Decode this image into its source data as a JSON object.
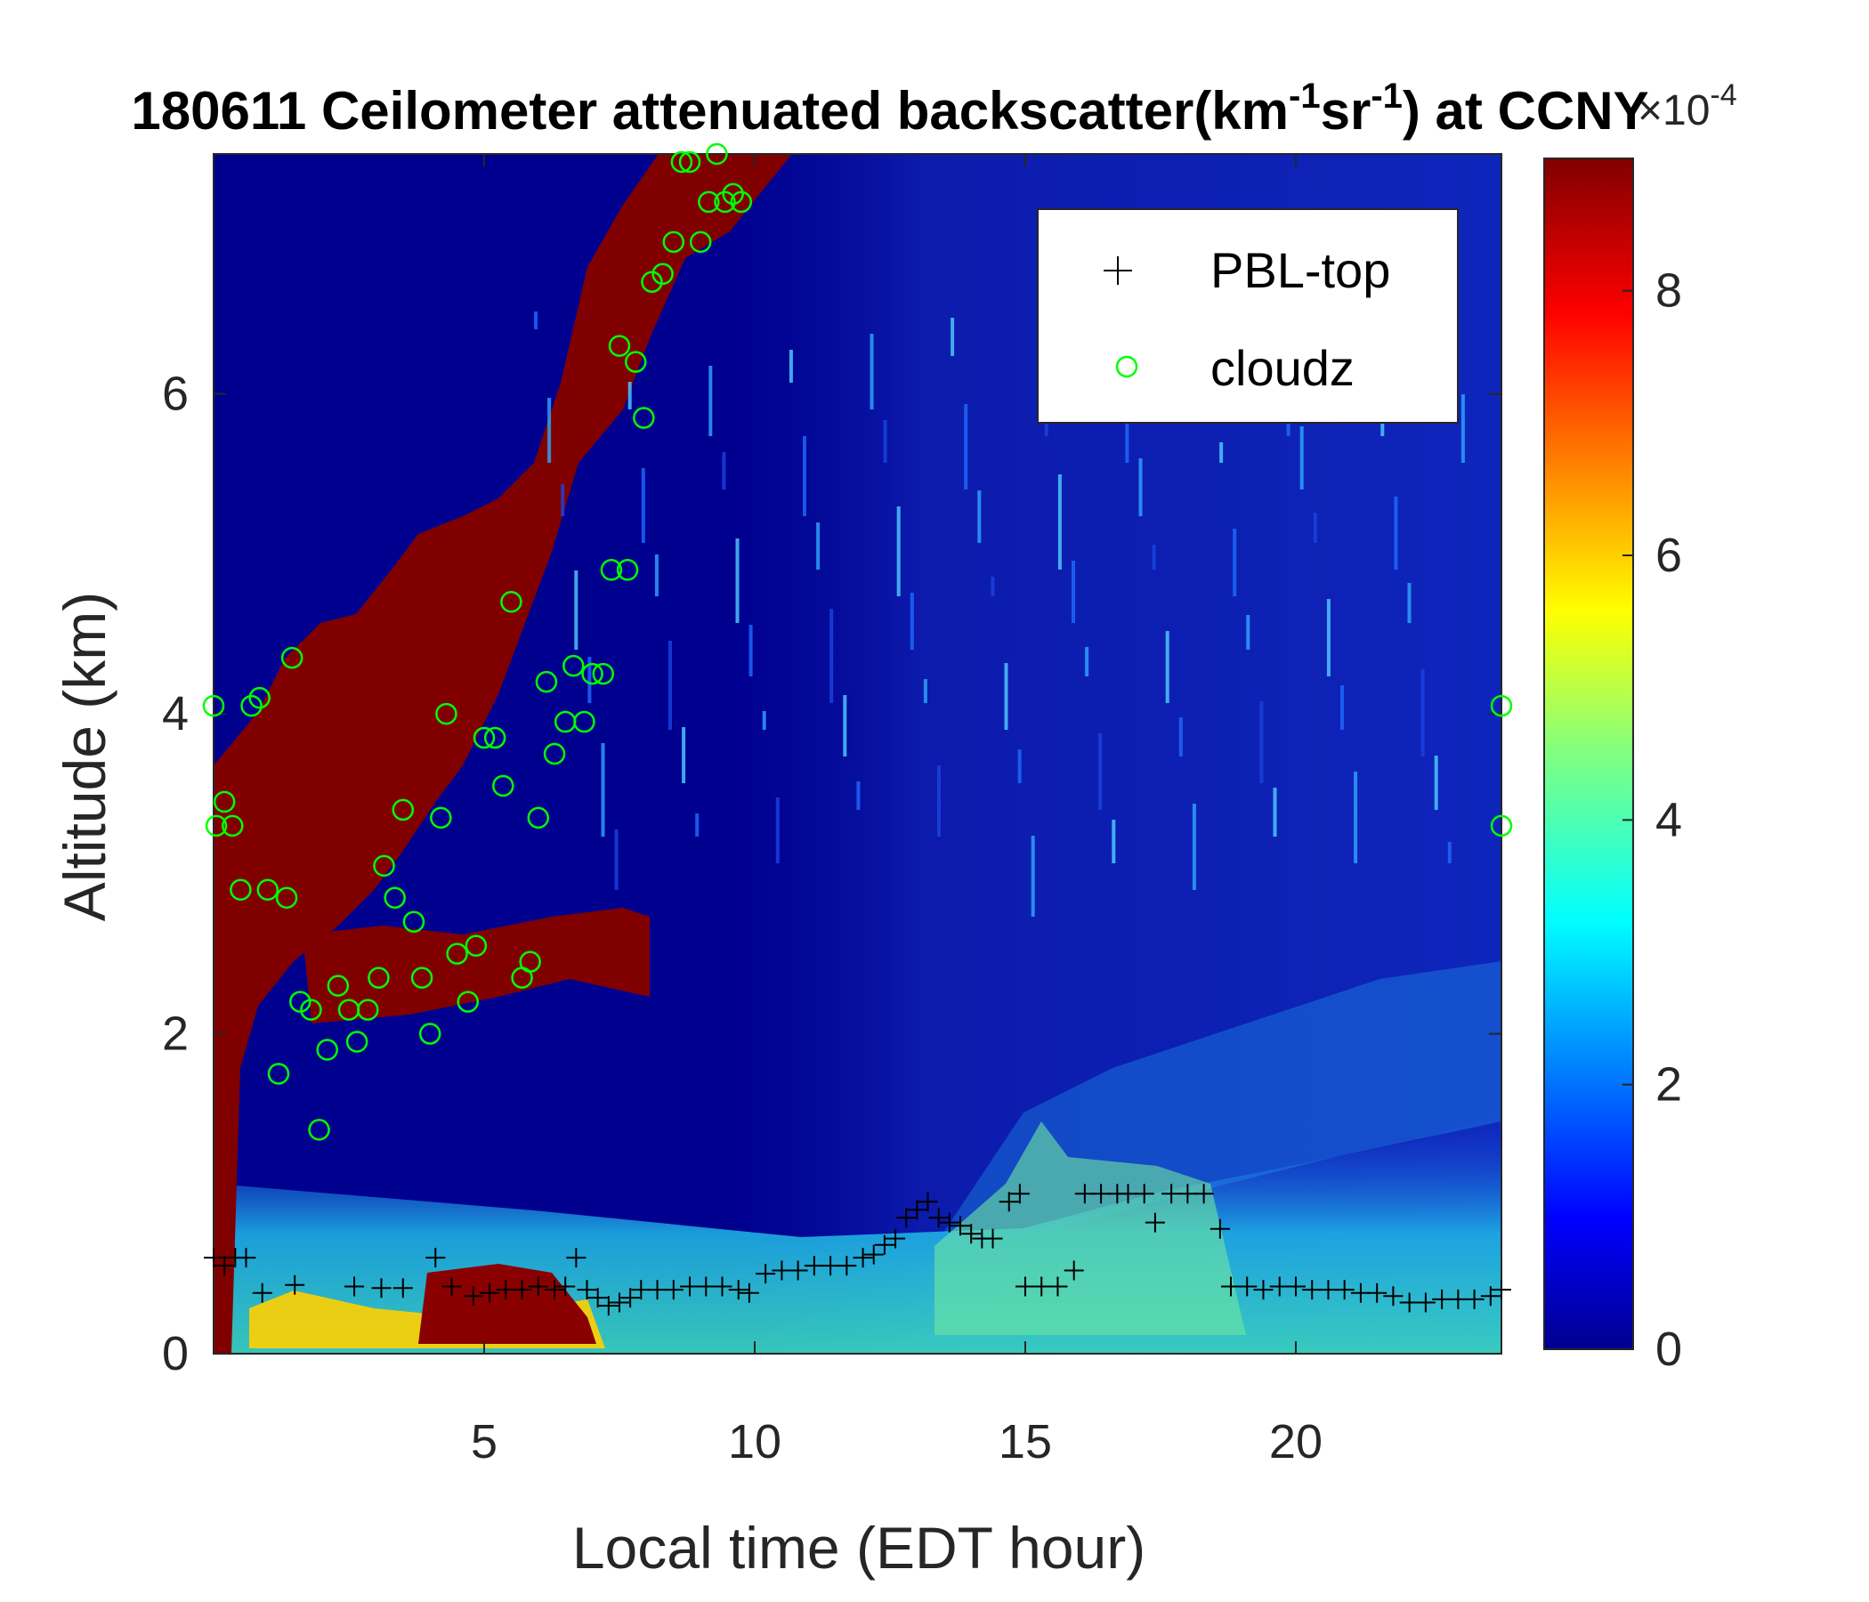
{
  "chart_data": {
    "type": "heatmap",
    "title_prefix": "180611 Ceilometer attenuated backscatter(km",
    "title_sup1": "-1",
    "title_mid": "sr",
    "title_sup2": "-1",
    "title_suffix": ") at CCNY",
    "xlabel": "Local time (EDT hour)",
    "ylabel": "Altitude (km)",
    "xlim": [
      0,
      23.8
    ],
    "ylim": [
      0,
      7.5
    ],
    "xticks": [
      5,
      10,
      15,
      20
    ],
    "xtick_labels": [
      "5",
      "10",
      "15",
      "20"
    ],
    "yticks": [
      0,
      2,
      4,
      6
    ],
    "ytick_labels": [
      "0",
      "2",
      "4",
      "6"
    ],
    "colorbar": {
      "colormap": "jet",
      "range": [
        0,
        9
      ],
      "ticks": [
        0,
        2,
        4,
        6,
        8
      ],
      "tick_labels": [
        "0",
        "2",
        "4",
        "6",
        "8"
      ],
      "multiplier_base": "×10",
      "multiplier_exp": "-4"
    },
    "legend": {
      "placement": "top-right",
      "entries": [
        {
          "name": "PBL-top",
          "marker": "+",
          "color": "#000000"
        },
        {
          "name": "cloudz",
          "marker": "o",
          "color": "#00ff00"
        }
      ]
    },
    "series": [
      {
        "name": "PBL-top",
        "points": [
          [
            0.0,
            0.6
          ],
          [
            0.2,
            0.55
          ],
          [
            0.4,
            0.6
          ],
          [
            0.6,
            0.6
          ],
          [
            0.9,
            0.38
          ],
          [
            1.5,
            0.43
          ],
          [
            2.6,
            0.42
          ],
          [
            3.1,
            0.41
          ],
          [
            3.5,
            0.41
          ],
          [
            4.1,
            0.6
          ],
          [
            4.4,
            0.42
          ],
          [
            4.8,
            0.36
          ],
          [
            5.1,
            0.38
          ],
          [
            5.4,
            0.4
          ],
          [
            5.7,
            0.4
          ],
          [
            6.0,
            0.42
          ],
          [
            6.3,
            0.4
          ],
          [
            6.5,
            0.42
          ],
          [
            6.7,
            0.6
          ],
          [
            6.9,
            0.4
          ],
          [
            7.1,
            0.35
          ],
          [
            7.3,
            0.3
          ],
          [
            7.5,
            0.32
          ],
          [
            7.7,
            0.35
          ],
          [
            7.9,
            0.4
          ],
          [
            8.2,
            0.4
          ],
          [
            8.5,
            0.4
          ],
          [
            8.8,
            0.42
          ],
          [
            9.1,
            0.42
          ],
          [
            9.4,
            0.42
          ],
          [
            9.7,
            0.4
          ],
          [
            9.9,
            0.38
          ],
          [
            10.2,
            0.5
          ],
          [
            10.5,
            0.52
          ],
          [
            10.8,
            0.52
          ],
          [
            11.1,
            0.55
          ],
          [
            11.4,
            0.55
          ],
          [
            11.7,
            0.55
          ],
          [
            12.0,
            0.6
          ],
          [
            12.2,
            0.62
          ],
          [
            12.4,
            0.68
          ],
          [
            12.6,
            0.72
          ],
          [
            12.8,
            0.85
          ],
          [
            13.0,
            0.9
          ],
          [
            13.2,
            0.95
          ],
          [
            13.4,
            0.85
          ],
          [
            13.6,
            0.82
          ],
          [
            13.8,
            0.8
          ],
          [
            14.0,
            0.75
          ],
          [
            14.2,
            0.72
          ],
          [
            14.4,
            0.72
          ],
          [
            14.7,
            0.95
          ],
          [
            14.9,
            1.0
          ],
          [
            15.0,
            0.42
          ],
          [
            15.3,
            0.42
          ],
          [
            15.6,
            0.42
          ],
          [
            15.9,
            0.52
          ],
          [
            16.1,
            1.0
          ],
          [
            16.4,
            1.0
          ],
          [
            16.7,
            1.0
          ],
          [
            16.9,
            1.0
          ],
          [
            17.2,
            1.0
          ],
          [
            17.4,
            0.82
          ],
          [
            17.7,
            1.0
          ],
          [
            18.0,
            1.0
          ],
          [
            18.3,
            1.0
          ],
          [
            18.6,
            0.78
          ],
          [
            18.8,
            0.42
          ],
          [
            19.1,
            0.42
          ],
          [
            19.4,
            0.4
          ],
          [
            19.7,
            0.42
          ],
          [
            20.0,
            0.42
          ],
          [
            20.3,
            0.4
          ],
          [
            20.6,
            0.4
          ],
          [
            20.9,
            0.4
          ],
          [
            21.2,
            0.38
          ],
          [
            21.5,
            0.38
          ],
          [
            21.8,
            0.36
          ],
          [
            22.1,
            0.32
          ],
          [
            22.4,
            0.32
          ],
          [
            22.7,
            0.34
          ],
          [
            23.0,
            0.34
          ],
          [
            23.3,
            0.34
          ],
          [
            23.6,
            0.36
          ],
          [
            23.8,
            0.4
          ]
        ]
      },
      {
        "name": "cloudz",
        "points": [
          [
            0.0,
            4.05
          ],
          [
            0.05,
            3.3
          ],
          [
            0.2,
            3.45
          ],
          [
            0.35,
            3.3
          ],
          [
            0.5,
            2.9
          ],
          [
            0.7,
            4.05
          ],
          [
            0.85,
            4.1
          ],
          [
            1.0,
            2.9
          ],
          [
            1.2,
            1.75
          ],
          [
            1.35,
            2.85
          ],
          [
            1.45,
            4.35
          ],
          [
            1.6,
            2.2
          ],
          [
            1.8,
            2.15
          ],
          [
            1.95,
            1.4
          ],
          [
            2.1,
            1.9
          ],
          [
            2.3,
            2.3
          ],
          [
            2.5,
            2.15
          ],
          [
            2.65,
            1.95
          ],
          [
            2.85,
            2.15
          ],
          [
            3.05,
            2.35
          ],
          [
            3.15,
            3.05
          ],
          [
            3.35,
            2.85
          ],
          [
            3.5,
            3.4
          ],
          [
            3.7,
            2.7
          ],
          [
            3.85,
            2.35
          ],
          [
            4.0,
            2.0
          ],
          [
            4.2,
            3.35
          ],
          [
            4.3,
            4.0
          ],
          [
            4.5,
            2.5
          ],
          [
            4.7,
            2.2
          ],
          [
            4.85,
            2.55
          ],
          [
            5.0,
            3.85
          ],
          [
            5.2,
            3.85
          ],
          [
            5.35,
            3.55
          ],
          [
            5.5,
            4.7
          ],
          [
            5.7,
            2.35
          ],
          [
            5.85,
            2.45
          ],
          [
            6.0,
            3.35
          ],
          [
            6.15,
            4.2
          ],
          [
            6.3,
            3.75
          ],
          [
            6.5,
            3.95
          ],
          [
            6.65,
            4.3
          ],
          [
            6.85,
            3.95
          ],
          [
            7.0,
            4.25
          ],
          [
            7.2,
            4.25
          ],
          [
            7.35,
            4.9
          ],
          [
            7.65,
            4.9
          ],
          [
            7.5,
            6.3
          ],
          [
            7.8,
            6.2
          ],
          [
            7.95,
            5.85
          ],
          [
            8.1,
            6.7
          ],
          [
            8.3,
            6.75
          ],
          [
            8.5,
            6.95
          ],
          [
            8.65,
            7.45
          ],
          [
            8.8,
            7.45
          ],
          [
            9.0,
            6.95
          ],
          [
            9.15,
            7.2
          ],
          [
            9.3,
            7.5
          ],
          [
            9.45,
            7.2
          ],
          [
            9.6,
            7.25
          ],
          [
            9.75,
            7.2
          ],
          [
            23.8,
            4.05
          ],
          [
            23.8,
            3.3
          ]
        ]
      }
    ]
  }
}
